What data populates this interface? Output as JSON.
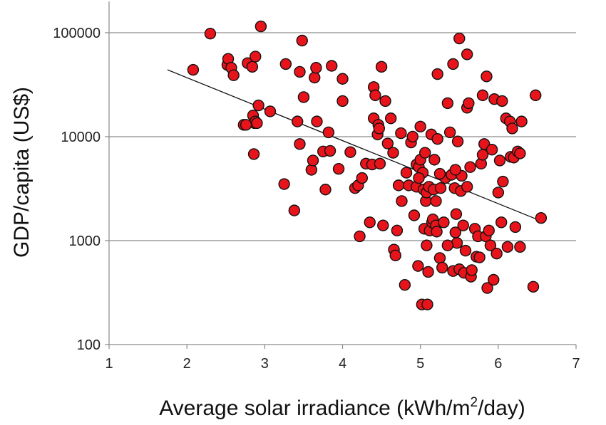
{
  "chart_data": {
    "type": "scatter",
    "xlabel_prefix": "Average solar irradiance (kWh/m",
    "xlabel_sup": "2",
    "xlabel_suffix": "/day)",
    "ylabel": "GDP/capita  (US$)",
    "xlim": [
      1,
      7
    ],
    "ylim": [
      100,
      200000
    ],
    "y_scale": "log",
    "grid": "horizontal",
    "legend": "none",
    "x_ticks": [
      "1",
      "2",
      "3",
      "4",
      "5",
      "6",
      "7"
    ],
    "y_ticks": [
      "100",
      "1000",
      "10000",
      "100000"
    ],
    "x_tick_values": [
      1,
      2,
      3,
      4,
      5,
      6,
      7
    ],
    "y_tick_values": [
      100,
      1000,
      10000,
      100000
    ],
    "marker_color": "#e8141b",
    "marker_edge": "#111111",
    "trendline": {
      "x": [
        1.75,
        6.5
      ],
      "y": [
        44000,
        1600
      ]
    },
    "points": [
      [
        2.08,
        44000
      ],
      [
        2.3,
        98000
      ],
      [
        2.52,
        49000
      ],
      [
        2.53,
        56000
      ],
      [
        2.57,
        46000
      ],
      [
        2.6,
        39000
      ],
      [
        2.78,
        51000
      ],
      [
        2.84,
        47000
      ],
      [
        2.85,
        16000
      ],
      [
        2.86,
        6800
      ],
      [
        2.87,
        13500
      ],
      [
        2.88,
        14000
      ],
      [
        2.88,
        59000
      ],
      [
        2.9,
        13500
      ],
      [
        2.92,
        20000
      ],
      [
        2.95,
        115000
      ],
      [
        2.73,
        13000
      ],
      [
        2.76,
        13000
      ],
      [
        3.07,
        17500
      ],
      [
        3.25,
        3500
      ],
      [
        3.27,
        50000
      ],
      [
        3.38,
        1950
      ],
      [
        3.42,
        14000
      ],
      [
        3.45,
        8500
      ],
      [
        3.45,
        42000
      ],
      [
        3.48,
        84000
      ],
      [
        3.5,
        24000
      ],
      [
        3.6,
        4800
      ],
      [
        3.62,
        5900
      ],
      [
        3.64,
        37000
      ],
      [
        3.66,
        46000
      ],
      [
        3.67,
        14000
      ],
      [
        3.75,
        7200
      ],
      [
        3.78,
        3100
      ],
      [
        3.82,
        11000
      ],
      [
        3.84,
        7300
      ],
      [
        3.86,
        48000
      ],
      [
        3.95,
        4900
      ],
      [
        4.0,
        36000
      ],
      [
        4.0,
        22000
      ],
      [
        4.1,
        7100
      ],
      [
        4.16,
        3200
      ],
      [
        4.2,
        3400
      ],
      [
        4.22,
        1100
      ],
      [
        4.25,
        4000
      ],
      [
        4.3,
        5500
      ],
      [
        4.35,
        1500
      ],
      [
        4.38,
        5400
      ],
      [
        4.4,
        30000
      ],
      [
        4.4,
        15000
      ],
      [
        4.42,
        25000
      ],
      [
        4.45,
        10500
      ],
      [
        4.46,
        13000
      ],
      [
        4.47,
        12000
      ],
      [
        4.48,
        5500
      ],
      [
        4.5,
        47000
      ],
      [
        4.52,
        1400
      ],
      [
        4.55,
        22000
      ],
      [
        4.58,
        8600
      ],
      [
        4.62,
        15000
      ],
      [
        4.65,
        7000
      ],
      [
        4.66,
        820
      ],
      [
        4.68,
        720
      ],
      [
        4.7,
        1250
      ],
      [
        4.72,
        3400
      ],
      [
        4.75,
        10800
      ],
      [
        4.76,
        2400
      ],
      [
        4.8,
        375
      ],
      [
        4.82,
        4500
      ],
      [
        4.85,
        3400
      ],
      [
        4.88,
        8800
      ],
      [
        4.9,
        10000
      ],
      [
        4.92,
        1750
      ],
      [
        4.95,
        3300
      ],
      [
        4.95,
        5400
      ],
      [
        4.97,
        570
      ],
      [
        4.98,
        5100
      ],
      [
        5.0,
        6000
      ],
      [
        5.0,
        12500
      ],
      [
        5.02,
        243
      ],
      [
        5.03,
        4500
      ],
      [
        5.04,
        3100
      ],
      [
        5.05,
        1300
      ],
      [
        5.06,
        7000
      ],
      [
        5.07,
        2400
      ],
      [
        5.08,
        2900
      ],
      [
        5.08,
        900
      ],
      [
        5.09,
        243
      ],
      [
        5.1,
        500
      ],
      [
        5.11,
        3300
      ],
      [
        5.12,
        1250
      ],
      [
        5.14,
        10500
      ],
      [
        5.15,
        1500
      ],
      [
        5.16,
        1600
      ],
      [
        5.17,
        3100
      ],
      [
        5.18,
        6000
      ],
      [
        5.2,
        2400
      ],
      [
        5.2,
        1400
      ],
      [
        5.21,
        1220
      ],
      [
        5.22,
        9500
      ],
      [
        5.22,
        40000
      ],
      [
        5.25,
        680
      ],
      [
        5.26,
        3200
      ],
      [
        5.28,
        550
      ],
      [
        5.3,
        1500
      ],
      [
        5.32,
        4000
      ],
      [
        5.35,
        21000
      ],
      [
        5.38,
        11000
      ],
      [
        5.4,
        4300
      ],
      [
        5.42,
        510
      ],
      [
        5.42,
        50000
      ],
      [
        5.44,
        3200
      ],
      [
        5.45,
        1200
      ],
      [
        5.46,
        1800
      ],
      [
        5.47,
        950
      ],
      [
        5.48,
        9000
      ],
      [
        5.5,
        530
      ],
      [
        5.5,
        88000
      ],
      [
        5.52,
        3000
      ],
      [
        5.53,
        4200
      ],
      [
        5.55,
        1400
      ],
      [
        5.56,
        490
      ],
      [
        5.58,
        800
      ],
      [
        5.6,
        62000
      ],
      [
        5.6,
        19000
      ],
      [
        5.62,
        21000
      ],
      [
        5.64,
        5100
      ],
      [
        5.65,
        450
      ],
      [
        5.66,
        520
      ],
      [
        5.7,
        1300
      ],
      [
        5.72,
        700
      ],
      [
        5.74,
        1100
      ],
      [
        5.76,
        690
      ],
      [
        5.78,
        5500
      ],
      [
        5.8,
        25000
      ],
      [
        5.8,
        6700
      ],
      [
        5.82,
        8500
      ],
      [
        5.84,
        1100
      ],
      [
        5.85,
        38000
      ],
      [
        5.86,
        350
      ],
      [
        5.88,
        1250
      ],
      [
        5.9,
        900
      ],
      [
        5.92,
        7500
      ],
      [
        5.94,
        420
      ],
      [
        5.95,
        23000
      ],
      [
        5.98,
        750
      ],
      [
        6.0,
        2900
      ],
      [
        6.02,
        5900
      ],
      [
        6.04,
        1500
      ],
      [
        6.05,
        22000
      ],
      [
        6.06,
        3700
      ],
      [
        6.1,
        15000
      ],
      [
        6.12,
        870
      ],
      [
        6.15,
        14000
      ],
      [
        6.16,
        6400
      ],
      [
        6.18,
        12000
      ],
      [
        6.2,
        6300
      ],
      [
        6.22,
        1350
      ],
      [
        6.25,
        7200
      ],
      [
        6.28,
        870
      ],
      [
        6.28,
        6900
      ],
      [
        6.3,
        14000
      ],
      [
        6.45,
        360
      ],
      [
        6.48,
        25000
      ],
      [
        6.55,
        1650
      ],
      [
        5.45,
        4800
      ],
      [
        5.35,
        900
      ],
      [
        5.6,
        3300
      ],
      [
        5.25,
        4400
      ],
      [
        4.98,
        4000
      ]
    ]
  }
}
